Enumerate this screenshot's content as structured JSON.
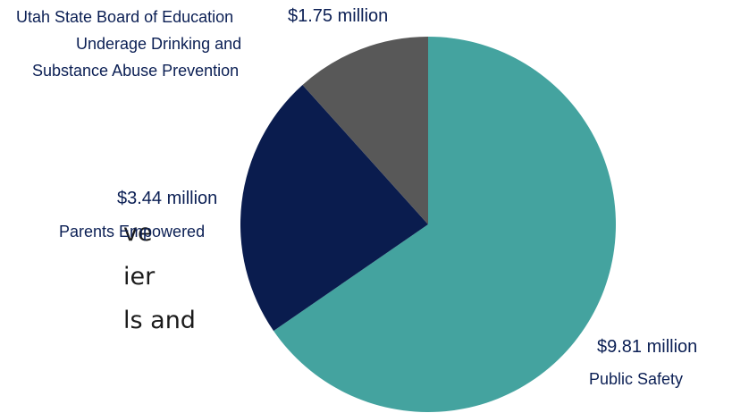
{
  "background_text": [
    "ve",
    "ier",
    "ls and"
  ],
  "chart_data": {
    "type": "pie",
    "title": "",
    "unit": "million",
    "slices": [
      {
        "label": "Public Safety",
        "value": 9.81,
        "value_label": "$9.81 million",
        "color": "#44a39f"
      },
      {
        "label": "Parents Empowered",
        "value": 3.44,
        "value_label": "$3.44 million",
        "color": "#0a1c4e"
      },
      {
        "label": "Utah State Board of Education Underage Drinking and Substance Abuse Prevention",
        "value": 1.75,
        "value_label": "$1.75 million",
        "color": "#585858"
      }
    ],
    "start_angle": "12 o'clock",
    "direction": "clockwise",
    "legend": "none (direct labels)"
  },
  "labels": {
    "public_safety": {
      "value": "$9.81 million",
      "name": "Public Safety"
    },
    "parents_empowered": {
      "value": "$3.44 million",
      "name": "Parents Empowered"
    },
    "usbe": {
      "value": "$1.75 million",
      "name_line1": "Utah State Board of Education",
      "name_line2": "Underage Drinking and",
      "name_line3": "Substance Abuse Prevention"
    }
  }
}
